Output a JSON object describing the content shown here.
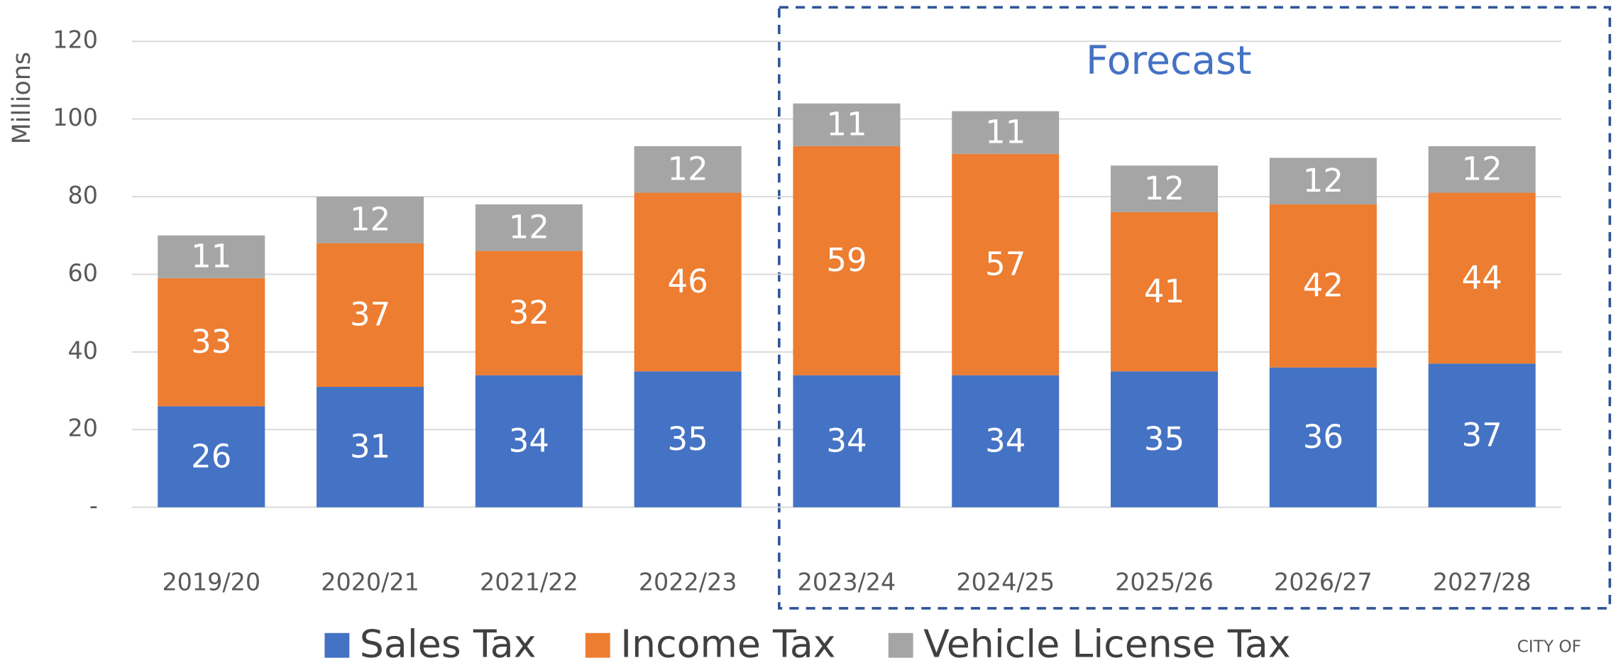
{
  "chart_data": {
    "type": "stacked_bar",
    "y_axis_label": "Millions",
    "annotation": "Forecast",
    "logo_text": "CITY OF",
    "categories": [
      "2019/20",
      "2020/21",
      "2021/22",
      "2022/23",
      "2023/24",
      "2024/25",
      "2025/26",
      "2026/27",
      "2027/28"
    ],
    "series": [
      {
        "name": "Sales Tax",
        "color": "#4472c4",
        "values": [
          26,
          31,
          34,
          35,
          34,
          34,
          35,
          36,
          37
        ]
      },
      {
        "name": "Income Tax",
        "color": "#ed7d31",
        "values": [
          33,
          37,
          32,
          46,
          59,
          57,
          41,
          42,
          44
        ]
      },
      {
        "name": "Vehicle License Tax",
        "color": "#a5a5a5",
        "values": [
          11,
          12,
          12,
          12,
          11,
          11,
          12,
          12,
          12
        ]
      }
    ],
    "ylim": [
      0,
      120
    ],
    "yticks": [
      {
        "value": 0,
        "label": "-"
      },
      20,
      40,
      60,
      80,
      100,
      120
    ],
    "grid": true,
    "legend": "bottom"
  }
}
